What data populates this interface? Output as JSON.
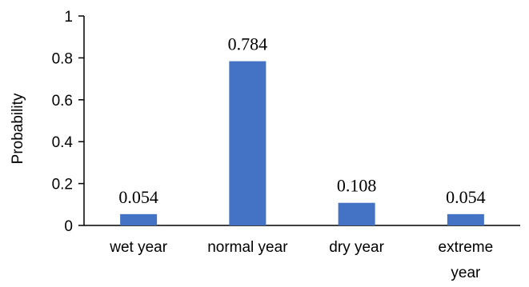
{
  "chart_data": {
    "type": "bar",
    "categories": [
      [
        "wet year"
      ],
      [
        "normal year"
      ],
      [
        "dry year"
      ],
      [
        "extreme",
        "year"
      ]
    ],
    "values": [
      0.054,
      0.784,
      0.108,
      0.054
    ],
    "data_labels": [
      "0.054",
      "0.784",
      "0.108",
      "0.054"
    ],
    "ylabel": "Probability",
    "ylim": [
      0,
      1
    ],
    "yticks": [
      0,
      0.2,
      0.4,
      0.6,
      0.8,
      1
    ],
    "ytick_labels": [
      "0",
      "0.2",
      "0.4",
      "0.6",
      "0.8",
      "1"
    ],
    "grid": false,
    "legend": "none",
    "bar_color": "#4472C4"
  }
}
